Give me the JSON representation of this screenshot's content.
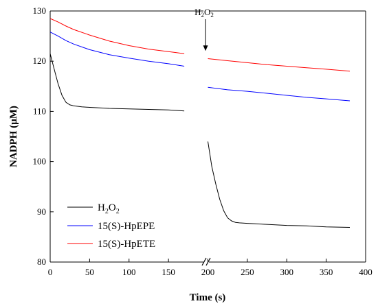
{
  "chart_data": {
    "type": "line",
    "title": "",
    "xlabel": "Time (s)",
    "ylabel": "NADPH (μM)",
    "xlim": [
      0,
      400
    ],
    "ylim": [
      80,
      130
    ],
    "x_axis_break": [
      175,
      195
    ],
    "x_ticks": [
      0,
      50,
      100,
      150,
      200,
      250,
      300,
      350,
      400
    ],
    "y_ticks": [
      80,
      90,
      100,
      110,
      120,
      130
    ],
    "grid": false,
    "legend_position": "bottom-left",
    "annotation": {
      "text": "H2O2",
      "text_main": "H",
      "text_sub1": "2",
      "text_mid": "O",
      "text_sub2": "2",
      "x": 197,
      "arrow_tip_y": 121.5
    },
    "series": [
      {
        "name": "H2O2",
        "name_main": "H",
        "name_sub1": "2",
        "name_mid": "O",
        "name_sub2": "2",
        "color": "#000000",
        "segments": [
          {
            "x": [
              0,
              5,
              10,
              15,
              20,
              25,
              30,
              40,
              50,
              75,
              100,
              125,
              150,
              170
            ],
            "y": [
              121.5,
              118.5,
              115.5,
              113.2,
              111.8,
              111.3,
              111.1,
              110.9,
              110.8,
              110.6,
              110.5,
              110.4,
              110.3,
              110.1
            ]
          },
          {
            "x": [
              200,
              205,
              210,
              215,
              220,
              225,
              230,
              235,
              240,
              250,
              275,
              300,
              325,
              350,
              380
            ],
            "y": [
              104.0,
              99.0,
              95.5,
              92.5,
              90.2,
              88.8,
              88.2,
              87.9,
              87.8,
              87.7,
              87.5,
              87.3,
              87.2,
              87.0,
              86.9
            ]
          }
        ]
      },
      {
        "name": "15(S)-HpEPE",
        "color": "#0000ff",
        "segments": [
          {
            "x": [
              0,
              10,
              20,
              30,
              50,
              75,
              100,
              125,
              150,
              170
            ],
            "y": [
              125.8,
              125.0,
              124.1,
              123.4,
              122.3,
              121.3,
              120.6,
              120.0,
              119.5,
              119.0
            ]
          },
          {
            "x": [
              200,
              225,
              250,
              275,
              300,
              325,
              350,
              380
            ],
            "y": [
              114.8,
              114.3,
              114.0,
              113.6,
              113.2,
              112.8,
              112.5,
              112.1
            ]
          }
        ]
      },
      {
        "name": "15(S)-HpETE",
        "color": "#ff0000",
        "segments": [
          {
            "x": [
              0,
              10,
              20,
              30,
              50,
              75,
              100,
              125,
              150,
              170
            ],
            "y": [
              128.5,
              127.8,
              127.0,
              126.3,
              125.2,
              124.0,
              123.1,
              122.4,
              121.9,
              121.5
            ]
          },
          {
            "x": [
              200,
              225,
              250,
              275,
              300,
              325,
              350,
              380
            ],
            "y": [
              120.5,
              120.1,
              119.7,
              119.3,
              119.0,
              118.7,
              118.4,
              118.0
            ]
          }
        ]
      }
    ]
  }
}
